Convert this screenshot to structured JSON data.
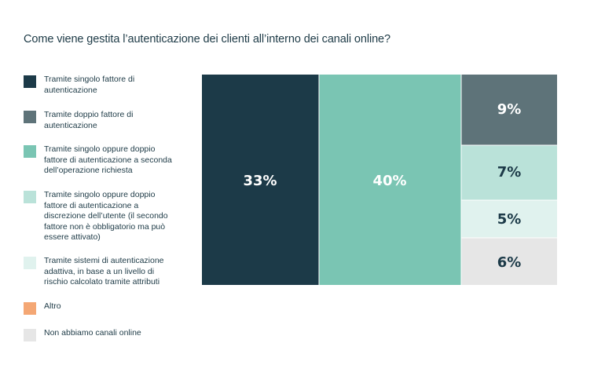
{
  "chart_data": {
    "type": "treemap",
    "title": "Come viene gestita l’autenticazione dei clienti all’interno dei canali online?",
    "legend_position": "left",
    "categories": [
      {
        "label": "Tramite singolo fattore di autenticazione",
        "color": "#1c3a48"
      },
      {
        "label": "Tramite doppio fattore di autenticazione",
        "color": "#5e7379"
      },
      {
        "label": "Tramite singolo oppure doppio fattore di autenticazione a seconda dell’operazione richiesta",
        "color": "#7ac5b3"
      },
      {
        "label": "Tramite singolo oppure doppio fattore di autenticazione a discrezione dell’utente (il secondo fattore non è obbligatorio ma può essere attivato)",
        "color": "#bae2d9"
      },
      {
        "label": "Tramite sistemi di autenticazione adattiva, in base a un livello di rischio calcolato tramite attributi",
        "color": "#e0f2ee"
      },
      {
        "label": "Altro",
        "color": "#f4a774"
      },
      {
        "label": "Non abbiamo canali online",
        "color": "#e6e6e6"
      }
    ],
    "values": [
      33,
      9,
      40,
      7,
      5,
      null,
      6
    ],
    "value_labels": [
      "33%",
      "9%",
      "40%",
      "7%",
      "5%",
      "",
      "6%"
    ],
    "label_colors": [
      "#ffffff",
      "#ffffff",
      "#ffffff",
      "#1c3a48",
      "#1c3a48",
      "#1c3a48",
      "#1c3a48"
    ]
  }
}
